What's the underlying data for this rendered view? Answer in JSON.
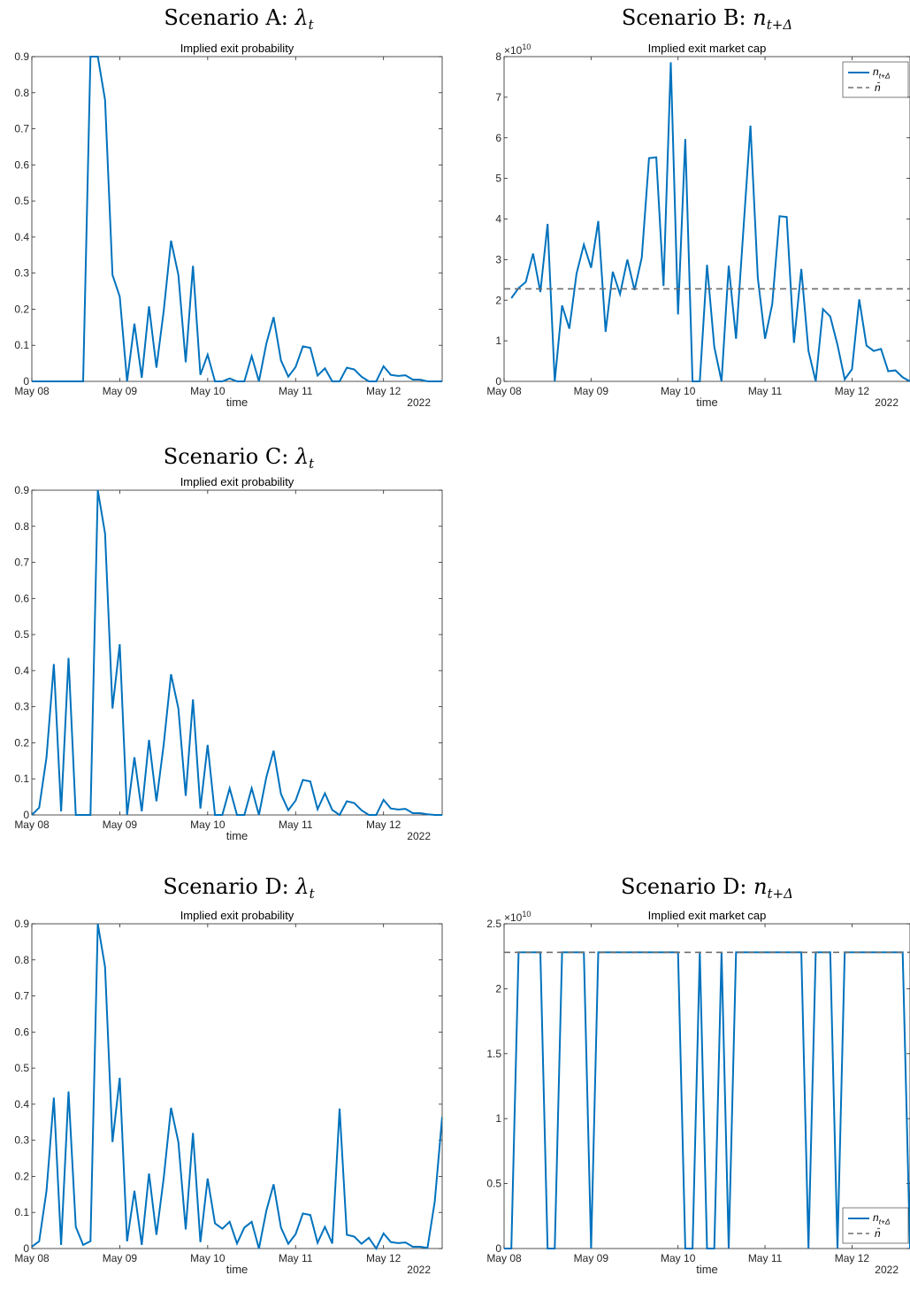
{
  "chart_data": [
    {
      "type": "line",
      "title_main": "Scenario A: ",
      "title_symbol": "λ",
      "title_sub": "t",
      "subtitle": "Implied exit probability",
      "xlabel": "time",
      "x_corner_label": "2022",
      "xticks": [
        "May 08",
        "May 09",
        "May 10",
        "May 11",
        "May 12"
      ],
      "yticks": [
        "0",
        "0.1",
        "0.2",
        "0.3",
        "0.4",
        "0.5",
        "0.6",
        "0.7",
        "0.8",
        "0.9"
      ],
      "ylim": [
        0,
        0.9
      ],
      "xlim_days": [
        0,
        4.667
      ],
      "exponent_label": "",
      "legend": null,
      "series": [
        {
          "color": "#0072BD",
          "dashed": false,
          "x": [
            0,
            0.083,
            0.167,
            0.25,
            0.333,
            0.417,
            0.5,
            0.583,
            0.667,
            0.75,
            0.833,
            0.917,
            1.0,
            1.083,
            1.167,
            1.25,
            1.333,
            1.417,
            1.5,
            1.583,
            1.667,
            1.75,
            1.833,
            1.917,
            2.0,
            2.083,
            2.167,
            2.25,
            2.333,
            2.417,
            2.5,
            2.583,
            2.667,
            2.75,
            2.833,
            2.917,
            3.0,
            3.083,
            3.167,
            3.25,
            3.333,
            3.417,
            3.5,
            3.583,
            3.667,
            3.75,
            3.833,
            3.917,
            4.0,
            4.083,
            4.167,
            4.25,
            4.333,
            4.417,
            4.5,
            4.583,
            4.667
          ],
          "y": [
            0,
            0,
            0,
            0,
            0,
            0,
            0,
            0,
            0.9,
            0.9,
            0.78,
            0.295,
            0.235,
            0,
            0.16,
            0.01,
            0.208,
            0.038,
            0.195,
            0.39,
            0.295,
            0.053,
            0.32,
            0.018,
            0.074,
            0,
            0,
            0.008,
            0,
            0,
            0.07,
            0,
            0.105,
            0.178,
            0.058,
            0.013,
            0.04,
            0.097,
            0.093,
            0.016,
            0.036,
            0,
            0,
            0.038,
            0.033,
            0.013,
            0,
            0,
            0.042,
            0.018,
            0.015,
            0.017,
            0.005,
            0.005,
            0,
            0,
            0
          ]
        }
      ]
    },
    {
      "type": "line",
      "title_main": "Scenario B: ",
      "title_symbol": "n",
      "title_sub": "t+Δ",
      "subtitle": "Implied exit market cap",
      "xlabel": "time",
      "x_corner_label": "2022",
      "xticks": [
        "May 08",
        "May 09",
        "May 10",
        "May 11",
        "May 12"
      ],
      "yticks": [
        "0",
        "1",
        "2",
        "3",
        "4",
        "5",
        "6",
        "7",
        "8"
      ],
      "ylim": [
        0,
        8
      ],
      "xlim_days": [
        0,
        4.667
      ],
      "exponent_label": "×10",
      "exponent_power": "10",
      "legend": {
        "position": "top-right",
        "entries": [
          "n_{t+Δ}",
          "n̄"
        ]
      },
      "series": [
        {
          "name": "n_{t+Δ}",
          "color": "#0072BD",
          "dashed": false,
          "x": [
            0.083,
            0.167,
            0.25,
            0.333,
            0.417,
            0.5,
            0.583,
            0.667,
            0.75,
            0.833,
            0.917,
            1.0,
            1.083,
            1.167,
            1.25,
            1.333,
            1.417,
            1.5,
            1.583,
            1.667,
            1.75,
            1.833,
            1.917,
            2.0,
            2.083,
            2.167,
            2.25,
            2.333,
            2.417,
            2.5,
            2.583,
            2.667,
            2.75,
            2.833,
            2.917,
            3.0,
            3.083,
            3.167,
            3.25,
            3.333,
            3.417,
            3.5,
            3.583,
            3.667,
            3.75,
            3.833,
            3.917,
            4.0,
            4.083,
            4.167,
            4.25,
            4.333,
            4.417,
            4.5,
            4.583,
            4.667
          ],
          "y": [
            2.05,
            2.3,
            2.45,
            3.15,
            2.2,
            3.88,
            0,
            1.87,
            1.3,
            2.65,
            3.37,
            2.8,
            3.95,
            1.22,
            2.7,
            2.15,
            3.0,
            2.25,
            3.05,
            5.5,
            5.52,
            2.35,
            7.86,
            1.65,
            5.97,
            0,
            0,
            2.87,
            0.85,
            0,
            2.85,
            1.05,
            3.7,
            6.3,
            2.55,
            1.05,
            1.9,
            4.07,
            4.05,
            0.95,
            2.77,
            0.75,
            0,
            1.78,
            1.6,
            0.9,
            0.05,
            0.3,
            2.02,
            0.88,
            0.75,
            0.8,
            0.25,
            0.27,
            0.1,
            0
          ]
        },
        {
          "name": "n̄",
          "color": "#6e6e6e",
          "dashed": true,
          "x": [
            0,
            4.667
          ],
          "y": [
            2.28,
            2.28
          ]
        }
      ]
    },
    {
      "type": "line",
      "title_main": "Scenario C: ",
      "title_symbol": "λ",
      "title_sub": "t",
      "subtitle": "Implied exit probability",
      "xlabel": "time",
      "x_corner_label": "2022",
      "xticks": [
        "May 08",
        "May 09",
        "May 10",
        "May 11",
        "May 12"
      ],
      "yticks": [
        "0",
        "0.1",
        "0.2",
        "0.3",
        "0.4",
        "0.5",
        "0.6",
        "0.7",
        "0.8",
        "0.9"
      ],
      "ylim": [
        0,
        0.9
      ],
      "xlim_days": [
        0,
        4.667
      ],
      "exponent_label": "",
      "legend": null,
      "series": [
        {
          "color": "#0072BD",
          "dashed": false,
          "x": [
            0,
            0.083,
            0.167,
            0.25,
            0.333,
            0.417,
            0.5,
            0.583,
            0.667,
            0.75,
            0.833,
            0.917,
            1.0,
            1.083,
            1.167,
            1.25,
            1.333,
            1.417,
            1.5,
            1.583,
            1.667,
            1.75,
            1.833,
            1.917,
            2.0,
            2.083,
            2.167,
            2.25,
            2.333,
            2.417,
            2.5,
            2.583,
            2.667,
            2.75,
            2.833,
            2.917,
            3.0,
            3.083,
            3.167,
            3.25,
            3.333,
            3.417,
            3.5,
            3.583,
            3.667,
            3.75,
            3.833,
            3.917,
            4.0,
            4.083,
            4.167,
            4.25,
            4.333,
            4.417,
            4.5,
            4.583,
            4.667
          ],
          "y": [
            0,
            0.02,
            0.16,
            0.418,
            0.01,
            0.435,
            0,
            0,
            0,
            0.9,
            0.78,
            0.295,
            0.473,
            0,
            0.16,
            0.01,
            0.208,
            0.038,
            0.195,
            0.39,
            0.295,
            0.053,
            0.32,
            0.018,
            0.194,
            0,
            0,
            0.074,
            0,
            0,
            0.074,
            0,
            0.105,
            0.178,
            0.058,
            0.013,
            0.04,
            0.097,
            0.093,
            0.016,
            0.06,
            0.014,
            0,
            0.038,
            0.033,
            0.013,
            0,
            0,
            0.042,
            0.018,
            0.015,
            0.017,
            0.005,
            0.005,
            0.002,
            0,
            0
          ]
        }
      ]
    },
    {
      "type": "line",
      "title_main": "Scenario D: ",
      "title_symbol": "λ",
      "title_sub": "t",
      "subtitle": "Implied exit probability",
      "xlabel": "time",
      "x_corner_label": "2022",
      "xticks": [
        "May 08",
        "May 09",
        "May 10",
        "May 11",
        "May 12"
      ],
      "yticks": [
        "0",
        "0.1",
        "0.2",
        "0.3",
        "0.4",
        "0.5",
        "0.6",
        "0.7",
        "0.8",
        "0.9"
      ],
      "ylim": [
        0,
        0.9
      ],
      "xlim_days": [
        0,
        4.667
      ],
      "exponent_label": "",
      "legend": null,
      "series": [
        {
          "color": "#0072BD",
          "dashed": false,
          "x": [
            0,
            0.083,
            0.167,
            0.25,
            0.333,
            0.417,
            0.5,
            0.583,
            0.667,
            0.75,
            0.833,
            0.917,
            1.0,
            1.083,
            1.167,
            1.25,
            1.333,
            1.417,
            1.5,
            1.583,
            1.667,
            1.75,
            1.833,
            1.917,
            2.0,
            2.083,
            2.167,
            2.25,
            2.333,
            2.417,
            2.5,
            2.583,
            2.667,
            2.75,
            2.833,
            2.917,
            3.0,
            3.083,
            3.167,
            3.25,
            3.333,
            3.417,
            3.5,
            3.583,
            3.667,
            3.75,
            3.833,
            3.917,
            4.0,
            4.083,
            4.167,
            4.25,
            4.333,
            4.417,
            4.5,
            4.583,
            4.667
          ],
          "y": [
            0.005,
            0.02,
            0.16,
            0.418,
            0.01,
            0.435,
            0.06,
            0.01,
            0.02,
            0.9,
            0.78,
            0.295,
            0.473,
            0.02,
            0.16,
            0.01,
            0.208,
            0.038,
            0.195,
            0.39,
            0.295,
            0.053,
            0.32,
            0.018,
            0.194,
            0.07,
            0.055,
            0.074,
            0.014,
            0.058,
            0.074,
            0,
            0.105,
            0.178,
            0.058,
            0.013,
            0.04,
            0.097,
            0.093,
            0.016,
            0.06,
            0.014,
            0.388,
            0.038,
            0.033,
            0.013,
            0.03,
            0,
            0.042,
            0.018,
            0.015,
            0.017,
            0.005,
            0.005,
            0.002,
            0.13,
            0.365
          ]
        }
      ]
    },
    {
      "type": "line",
      "title_main": "Scenario D: ",
      "title_symbol": "n",
      "title_sub": "t+Δ",
      "subtitle": "Implied exit market cap",
      "xlabel": "time",
      "x_corner_label": "2022",
      "xticks": [
        "May 08",
        "May 09",
        "May 10",
        "May 11",
        "May 12"
      ],
      "yticks": [
        "0",
        "0.5",
        "1",
        "1.5",
        "2",
        "2.5"
      ],
      "ylim": [
        0,
        2.5
      ],
      "xlim_days": [
        0,
        4.667
      ],
      "exponent_label": "×10",
      "exponent_power": "10",
      "legend": {
        "position": "bottom-right",
        "entries": [
          "n_{t+Δ}",
          "n̄"
        ]
      },
      "series": [
        {
          "name": "n_{t+Δ}",
          "color": "#0072BD",
          "dashed": false,
          "x": [
            0,
            0.083,
            0.167,
            0.25,
            0.333,
            0.417,
            0.5,
            0.583,
            0.667,
            0.75,
            0.833,
            0.917,
            1.0,
            1.083,
            1.167,
            1.25,
            1.333,
            1.417,
            1.5,
            1.583,
            1.667,
            1.75,
            1.833,
            1.917,
            2.0,
            2.083,
            2.167,
            2.25,
            2.333,
            2.417,
            2.5,
            2.583,
            2.667,
            2.75,
            2.833,
            2.917,
            3.0,
            3.083,
            3.167,
            3.25,
            3.333,
            3.417,
            3.5,
            3.583,
            3.667,
            3.75,
            3.833,
            3.917,
            4.0,
            4.083,
            4.167,
            4.25,
            4.333,
            4.417,
            4.5,
            4.583,
            4.667
          ],
          "y": [
            0,
            0,
            2.28,
            2.28,
            2.28,
            2.28,
            0,
            0,
            2.28,
            2.28,
            2.28,
            2.28,
            0,
            2.28,
            2.28,
            2.28,
            2.28,
            2.28,
            2.28,
            2.28,
            2.28,
            2.28,
            2.28,
            2.28,
            2.28,
            0,
            0,
            2.28,
            0,
            0,
            2.28,
            0,
            2.28,
            2.28,
            2.28,
            2.28,
            2.28,
            2.28,
            2.28,
            2.28,
            2.28,
            2.28,
            0,
            2.28,
            2.28,
            2.28,
            0,
            2.28,
            2.28,
            2.28,
            2.28,
            2.28,
            2.28,
            2.28,
            2.28,
            2.28,
            0
          ]
        },
        {
          "name": "n̄",
          "color": "#6e6e6e",
          "dashed": true,
          "x": [
            0,
            4.667
          ],
          "y": [
            2.28,
            2.28
          ]
        }
      ]
    }
  ]
}
